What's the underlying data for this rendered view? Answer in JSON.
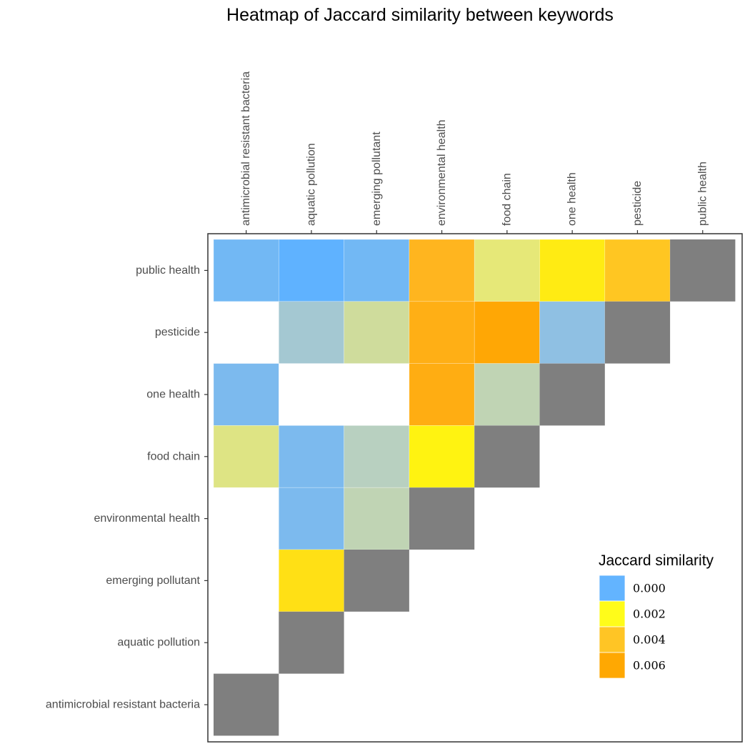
{
  "chart_data": {
    "type": "heatmap",
    "title": "Heatmap of Jaccard similarity between keywords",
    "xlabel": "",
    "ylabel": "",
    "x_categories": [
      "antimicrobial resistant bacteria",
      "aquatic pollution",
      "emerging pollutant",
      "environmental health",
      "food chain",
      "one health",
      "pesticide",
      "public health"
    ],
    "y_categories": [
      "public health",
      "pesticide",
      "one health",
      "food chain",
      "environmental health",
      "emerging pollutant",
      "aquatic pollution",
      "antimicrobial resistant bacteria"
    ],
    "cells": [
      {
        "row": "public health",
        "col": "antimicrobial resistant bacteria",
        "value": 0.0002
      },
      {
        "row": "public health",
        "col": "aquatic pollution",
        "value": 0.0
      },
      {
        "row": "public health",
        "col": "emerging pollutant",
        "value": 0.0002
      },
      {
        "row": "public health",
        "col": "environmental health",
        "value": 0.0052
      },
      {
        "row": "public health",
        "col": "food chain",
        "value": 0.0015
      },
      {
        "row": "public health",
        "col": "one health",
        "value": 0.0025
      },
      {
        "row": "public health",
        "col": "pesticide",
        "value": 0.004
      },
      {
        "row": "pesticide",
        "col": "aquatic pollution",
        "value": 0.0007
      },
      {
        "row": "pesticide",
        "col": "emerging pollutant",
        "value": 0.0012
      },
      {
        "row": "pesticide",
        "col": "environmental health",
        "value": 0.0058
      },
      {
        "row": "pesticide",
        "col": "food chain",
        "value": 0.0064
      },
      {
        "row": "pesticide",
        "col": "one health",
        "value": 0.0005
      },
      {
        "row": "one health",
        "col": "antimicrobial resistant bacteria",
        "value": 0.0003
      },
      {
        "row": "one health",
        "col": "environmental health",
        "value": 0.006
      },
      {
        "row": "one health",
        "col": "food chain",
        "value": 0.001
      },
      {
        "row": "food chain",
        "col": "antimicrobial resistant bacteria",
        "value": 0.0014
      },
      {
        "row": "food chain",
        "col": "aquatic pollution",
        "value": 0.0003
      },
      {
        "row": "food chain",
        "col": "emerging pollutant",
        "value": 0.0009
      },
      {
        "row": "food chain",
        "col": "environmental health",
        "value": 0.0021
      },
      {
        "row": "environmental health",
        "col": "aquatic pollution",
        "value": 0.0003
      },
      {
        "row": "environmental health",
        "col": "emerging pollutant",
        "value": 0.001
      },
      {
        "row": "emerging pollutant",
        "col": "aquatic pollution",
        "value": 0.003
      }
    ],
    "diagonal_color": "#7f7f7f",
    "legend": {
      "title": "Jaccard similarity",
      "placement": "bottom-right",
      "entries": [
        {
          "label": "0.000",
          "color": "#63b4ff"
        },
        {
          "label": "0.002",
          "color": "#fffc1a"
        },
        {
          "label": "0.004",
          "color": "#ffc525"
        },
        {
          "label": "0.006",
          "color": "#ffa802"
        }
      ]
    },
    "color_scale": {
      "stops": [
        {
          "value": 0.0,
          "color": "#5fb2ff"
        },
        {
          "value": 0.0005,
          "color": "#8fc0e3"
        },
        {
          "value": 0.0009,
          "color": "#b8d0c0"
        },
        {
          "value": 0.0015,
          "color": "#e6e878"
        },
        {
          "value": 0.002,
          "color": "#fff510"
        },
        {
          "value": 0.003,
          "color": "#ffe015"
        },
        {
          "value": 0.004,
          "color": "#ffc622"
        },
        {
          "value": 0.0052,
          "color": "#ffb51f"
        },
        {
          "value": 0.006,
          "color": "#ffad12"
        },
        {
          "value": 0.0065,
          "color": "#ffa602"
        }
      ]
    },
    "grid": false
  }
}
